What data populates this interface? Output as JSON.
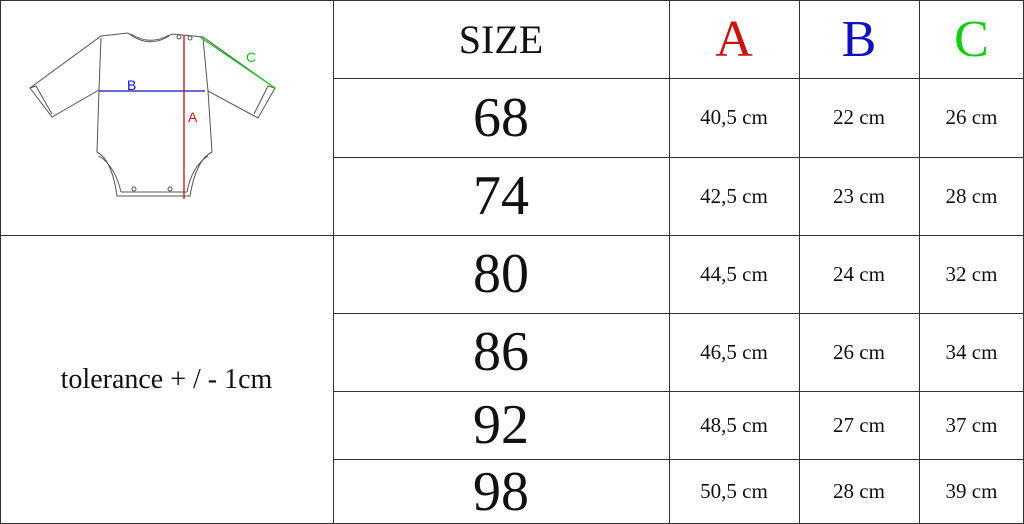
{
  "header": {
    "size": "SIZE",
    "a": "A",
    "b": "B",
    "c": "C"
  },
  "colors": {
    "a": "#cc1111",
    "b": "#1111bb",
    "c": "#11cc11",
    "grid": "#333333"
  },
  "diagram": {
    "label_a": "A",
    "label_b": "B",
    "label_c": "C"
  },
  "tolerance": "tolerance + / - 1cm",
  "rows": [
    {
      "size": "68",
      "a": "40,5 cm",
      "b": "22 cm",
      "c": "26 cm"
    },
    {
      "size": "74",
      "a": "42,5 cm",
      "b": "23 cm",
      "c": "28 cm"
    },
    {
      "size": "80",
      "a": "44,5 cm",
      "b": "24 cm",
      "c": "32 cm"
    },
    {
      "size": "86",
      "a": "46,5 cm",
      "b": "26 cm",
      "c": "34 cm"
    },
    {
      "size": "92",
      "a": "48,5 cm",
      "b": "27 cm",
      "c": "37 cm"
    },
    {
      "size": "98",
      "a": "50,5 cm",
      "b": "28 cm",
      "c": "39 cm"
    }
  ]
}
